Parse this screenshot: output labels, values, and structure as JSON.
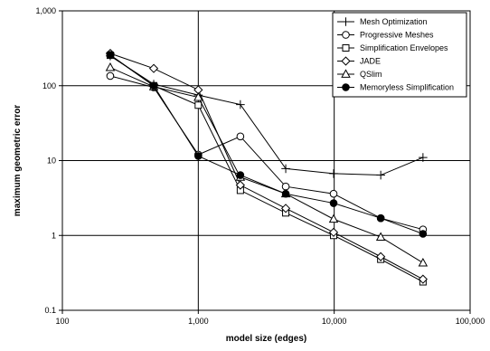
{
  "chart_data": {
    "type": "line",
    "title": "",
    "xlabel": "model size (edges)",
    "ylabel": "maximum geometric error",
    "x_scale": "log",
    "y_scale": "log",
    "xlim": [
      100,
      100000
    ],
    "ylim": [
      0.1,
      1000
    ],
    "x_ticks": [
      "100",
      "1,000",
      "10,000",
      "100,000"
    ],
    "y_ticks": [
      "0.1",
      "1",
      "10",
      "100",
      "1,000"
    ],
    "grid": "major",
    "legend_position": "top-right",
    "x": [
      225,
      470,
      1000,
      2040,
      4400,
      9900,
      22000,
      45000
    ],
    "series": [
      {
        "name": "Mesh Optimization",
        "marker": "plus",
        "points": [
          [
            225,
            250
          ],
          [
            470,
            105
          ],
          [
            1000,
            75
          ],
          [
            2040,
            56
          ],
          [
            4400,
            7.8
          ],
          [
            9900,
            6.7
          ],
          [
            22000,
            6.4
          ],
          [
            45000,
            11
          ]
        ]
      },
      {
        "name": "Progressive Meshes",
        "marker": "circle-open",
        "points": [
          [
            225,
            135
          ],
          [
            470,
            95
          ],
          [
            1000,
            12
          ],
          [
            2040,
            21
          ],
          [
            4400,
            4.5
          ],
          [
            9900,
            3.6
          ],
          [
            22000,
            1.7
          ],
          [
            45000,
            1.2
          ]
        ]
      },
      {
        "name": "Simplification Envelopes",
        "marker": "square-open",
        "points": [
          [
            225,
            255
          ],
          [
            470,
            100
          ],
          [
            1000,
            55
          ],
          [
            2040,
            4.0
          ],
          [
            4400,
            2.0
          ],
          [
            9900,
            1.0
          ],
          [
            22000,
            0.48
          ],
          [
            45000,
            0.24
          ]
        ]
      },
      {
        "name": "JADE",
        "marker": "diamond-open",
        "points": [
          [
            225,
            270
          ],
          [
            470,
            170
          ],
          [
            1000,
            88
          ],
          [
            2040,
            4.7
          ],
          [
            4400,
            2.3
          ],
          [
            9900,
            1.1
          ],
          [
            22000,
            0.52
          ],
          [
            45000,
            0.26
          ]
        ]
      },
      {
        "name": "QSlim",
        "marker": "triangle-open",
        "points": [
          [
            225,
            175
          ],
          [
            470,
            97
          ],
          [
            1000,
            70
          ],
          [
            2040,
            6.0
          ],
          [
            4400,
            3.6
          ],
          [
            9900,
            1.65
          ],
          [
            22000,
            0.95
          ],
          [
            45000,
            0.43
          ]
        ]
      },
      {
        "name": "Memoryless Simplification",
        "marker": "circle-filled",
        "points": [
          [
            225,
            258
          ],
          [
            470,
            100
          ],
          [
            1000,
            11.5
          ],
          [
            2040,
            6.4
          ],
          [
            4400,
            3.6
          ],
          [
            9900,
            2.7
          ],
          [
            22000,
            1.7
          ],
          [
            45000,
            1.05
          ]
        ]
      }
    ]
  }
}
